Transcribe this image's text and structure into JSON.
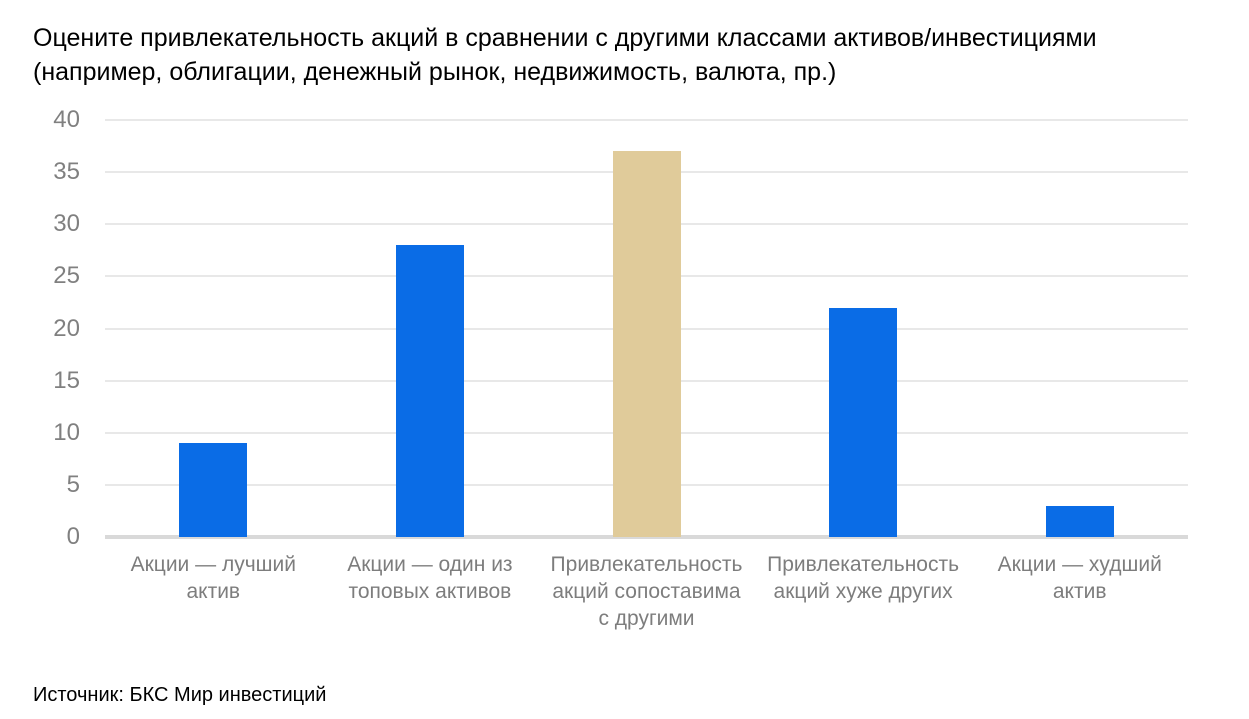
{
  "title_lines": [
    "Оцените привлекательность акций в сравнении с другими классами активов/инвестициями",
    "(например, облигации, денежный рынок, недвижимость, валюта, пр.)"
  ],
  "source": "Источник: БКС Мир инвестиций",
  "colors": {
    "bar_blue": "#0a6ce6",
    "bar_highlight": "#e0cb9a",
    "gridline": "#e8e8e8",
    "axis_line": "#d9d9d9",
    "y_tick_text": "#808080",
    "x_label_text": "#7d7d7d",
    "title_text": "#000000",
    "source_text": "#8a8a8a"
  },
  "chart_data": {
    "type": "bar",
    "title": "Оцените привлекательность акций в сравнении с другими классами активов/инвестициями (например, облигации, денежный рынок, недвижимость, валюта, пр.)",
    "categories": [
      "Акции — лучший актив",
      "Акции — один из топовых активов",
      "Привлекательность акций сопоставима с другими",
      "Привлекательность акций хуже других",
      "Акции — худший актив"
    ],
    "categories_lines": [
      [
        "Акции — лучший",
        "актив"
      ],
      [
        "Акции — один из",
        "топовых активов"
      ],
      [
        "Привлекательность",
        "акций сопоставима",
        "с другими"
      ],
      [
        "Привлекательность",
        "акций хуже других"
      ],
      [
        "Акции — худший",
        "актив"
      ]
    ],
    "values": [
      9,
      28,
      37,
      22,
      3
    ],
    "bar_colors": [
      "#0a6ce6",
      "#0a6ce6",
      "#e0cb9a",
      "#0a6ce6",
      "#0a6ce6"
    ],
    "yticks": [
      0,
      5,
      10,
      15,
      20,
      25,
      30,
      35,
      40
    ],
    "ylim": [
      0,
      40
    ],
    "xlabel": "",
    "ylabel": "",
    "grid": true,
    "legend": false,
    "source": "Источник: БКС Мир инвестиций"
  }
}
